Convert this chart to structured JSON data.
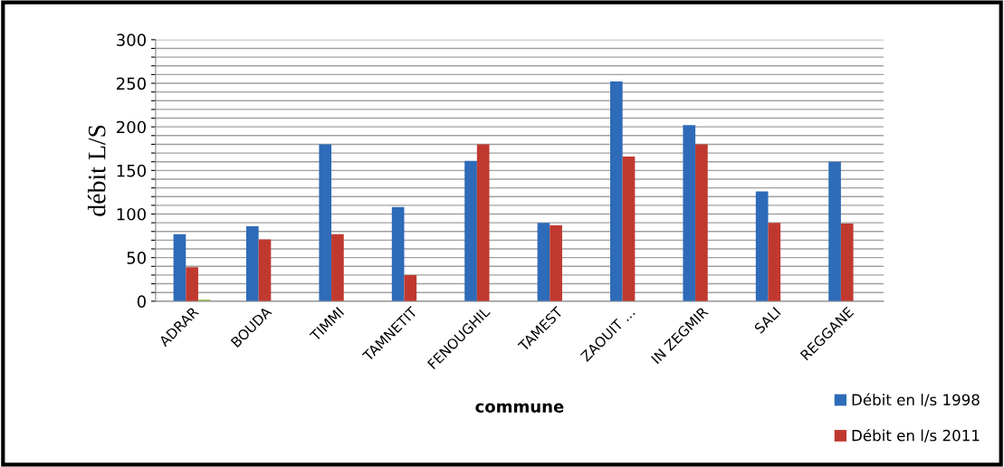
{
  "chart_data": {
    "type": "bar",
    "xlabel": "commune",
    "ylabel": "débit L/S",
    "categories": [
      "ADRAR",
      "BOUDA",
      "TIMMI",
      "TAMNETIT",
      "FENOUGHIL",
      "TAMEST",
      "ZAOUIT ...",
      "IN ZEGMIR",
      "SALI",
      "REGGANE"
    ],
    "series": [
      {
        "name": "Débit en l/s 1998",
        "color": "#2e6bb8",
        "values": [
          77,
          86,
          180,
          108,
          161,
          90,
          252,
          202,
          126,
          160
        ]
      },
      {
        "name": "Débit en l/s 2011",
        "color": "#c0392f",
        "values": [
          39,
          71,
          77,
          30,
          180,
          87,
          166,
          180,
          90,
          89
        ]
      },
      {
        "color": "#9bbb59",
        "values": [
          2,
          null,
          null,
          null,
          null,
          null,
          null,
          null,
          null,
          null
        ]
      }
    ],
    "ylim": [
      0,
      300
    ],
    "yticks": [
      0,
      {
        "value": 10,
        "label": null
      },
      {
        "value": 20,
        "label": null
      },
      {
        "value": 30,
        "label": null
      },
      {
        "value": 40,
        "label": null
      },
      50,
      {
        "value": 60,
        "label": null
      },
      {
        "value": 70,
        "label": null
      },
      {
        "value": 80,
        "label": null
      },
      {
        "value": 90,
        "label": null
      },
      100,
      {
        "value": 110,
        "label": null
      },
      {
        "value": 120,
        "label": null
      },
      {
        "value": 130,
        "label": null
      },
      {
        "value": 140,
        "label": null
      },
      150,
      {
        "value": 160,
        "label": null
      },
      {
        "value": 170,
        "label": null
      },
      {
        "value": 180,
        "label": null
      },
      {
        "value": 190,
        "label": null
      },
      200,
      {
        "value": 210,
        "label": null
      },
      {
        "value": 220,
        "label": null
      },
      {
        "value": 230,
        "label": null
      },
      {
        "value": 240,
        "label": null
      },
      250,
      {
        "value": 260,
        "label": null
      },
      {
        "value": 270,
        "label": null
      },
      {
        "value": 280,
        "label": null
      },
      {
        "value": 290,
        "label": null
      },
      300
    ],
    "grid": "y",
    "legend": "bottom right"
  }
}
